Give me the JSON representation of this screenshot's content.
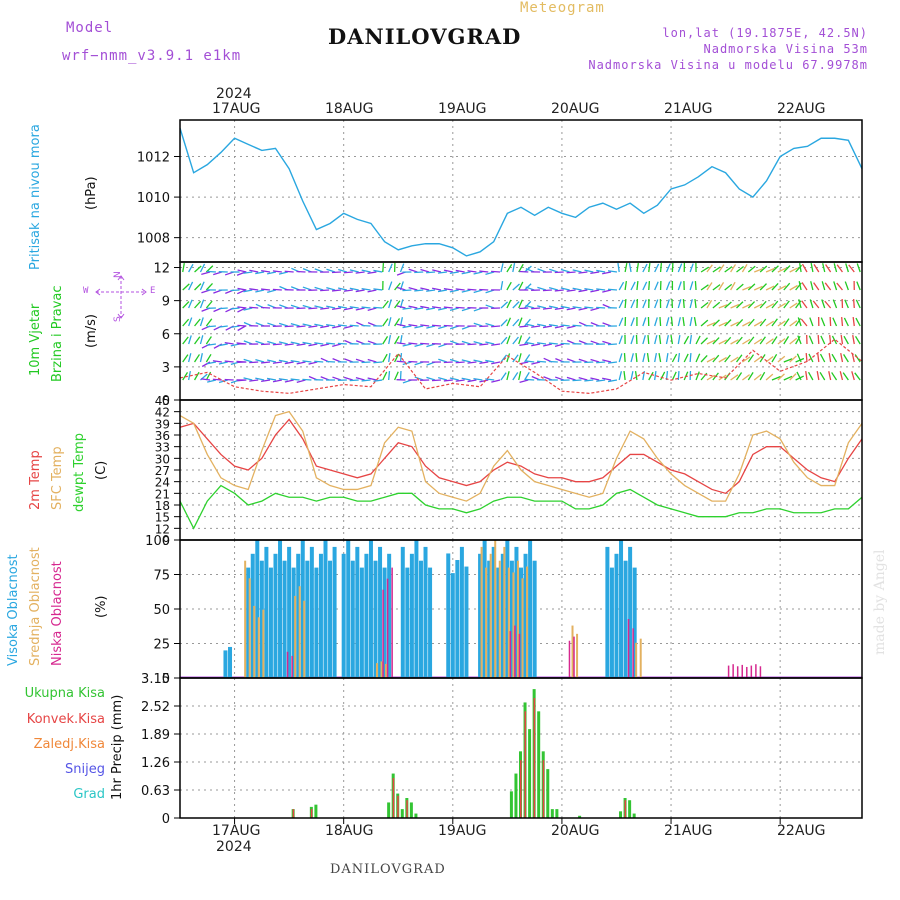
{
  "header": {
    "model_label": "Model",
    "model_name": "wrf−nmm_v3.9.1  e1km",
    "title": "DANILOVGRAD",
    "meteogram_label": "Meteogram",
    "coords": "lon,lat (19.1875E, 42.5N)",
    "elevation": "Nadmorska Visina 53m",
    "model_elevation": "Nadmorska Visina u modelu 67.9978m"
  },
  "axis": {
    "year_top": "2024",
    "year_bottom": "2024",
    "dates": [
      "17AUG",
      "18AUG",
      "19AUG",
      "20AUG",
      "21AUG",
      "22AUG"
    ]
  },
  "footer": {
    "station": "DANILOVGRAD",
    "credit": "made by Angel"
  },
  "colors": {
    "pressure": "#2aa7e0",
    "wind_speed": "#e64545",
    "t2m": "#e64545",
    "sfc": "#e3b160",
    "dewp": "#2ed12e",
    "cloud_high": "#2aa7e0",
    "cloud_mid": "#e3b160",
    "cloud_low": "#d6288f",
    "precip_total": "#33c433",
    "precip_conv": "#e64545",
    "precip_strat": "#f0883a",
    "snow": "#5555e6",
    "grad": "#2bc6c6",
    "wind_label": "#22c922",
    "compass": "#b352e0"
  },
  "panels": {
    "pressure": {
      "label": "Pritisak na nivou mora",
      "unit": "(hPa)"
    },
    "wind": {
      "label_1": "10m Vjetar",
      "label_2": "Brzina i Pravac",
      "unit": "(m/s)",
      "compass": {
        "n": "N",
        "s": "S",
        "e": "E",
        "w": "W"
      }
    },
    "temperature": {
      "label_1": "2m Temp",
      "label_2": "SFC Temp",
      "label_3": "dewpt Temp",
      "unit": "(C)"
    },
    "cloud": {
      "label_1": "Visoka Oblacnost",
      "label_2": "Srednja Oblacnost",
      "label_3": "Niska Oblacnost",
      "unit": "(%)"
    },
    "precip": {
      "labels": [
        "Ukupna Kisa",
        "Konvek.Kisa",
        "Zaledj.Kisa",
        "Snijeg",
        "Grad"
      ],
      "unit": "1hr Precip (mm)"
    }
  },
  "chart_data": [
    {
      "type": "line",
      "name": "pressure",
      "x_hours_from_start": [
        0,
        3,
        6,
        9,
        12,
        15,
        18,
        21,
        24,
        27,
        30,
        33,
        36,
        39,
        42,
        45,
        48,
        51,
        54,
        57,
        60,
        63,
        66,
        69,
        72,
        75,
        78,
        81,
        84,
        87,
        90,
        93,
        96,
        99,
        102,
        105,
        108,
        111,
        114,
        117,
        120,
        123,
        126,
        129,
        132,
        135,
        138,
        141,
        144,
        147,
        150
      ],
      "x_start": "2024-08-16 12:00",
      "values": [
        1013.4,
        1011.2,
        1011.6,
        1012.2,
        1012.9,
        1012.6,
        1012.3,
        1012.4,
        1011.4,
        1009.8,
        1008.4,
        1008.7,
        1009.2,
        1008.9,
        1008.7,
        1007.8,
        1007.4,
        1007.6,
        1007.7,
        1007.7,
        1007.5,
        1007.1,
        1007.3,
        1007.8,
        1009.2,
        1009.5,
        1009.1,
        1009.5,
        1009.2,
        1009.0,
        1009.5,
        1009.7,
        1009.4,
        1009.7,
        1009.2,
        1009.6,
        1010.4,
        1010.6,
        1011.0,
        1011.5,
        1011.2,
        1010.4,
        1010.0,
        1010.8,
        1012.0,
        1012.4,
        1012.5,
        1012.9,
        1012.9,
        1012.8,
        1011.4
      ],
      "yticks": [
        1008,
        1010,
        1012
      ],
      "ylim": [
        1006.8,
        1013.8
      ]
    },
    {
      "type": "line",
      "name": "wind_speed",
      "x_hours_from_start": [
        0,
        6,
        12,
        18,
        24,
        30,
        36,
        42,
        48,
        54,
        60,
        66,
        72,
        78,
        84,
        90,
        96,
        102,
        108,
        114,
        120,
        126,
        132,
        138,
        144,
        150
      ],
      "values": [
        2.0,
        2.5,
        1.2,
        0.8,
        0.6,
        1.0,
        1.4,
        1.2,
        4.2,
        1.0,
        1.5,
        1.2,
        4.0,
        2.5,
        0.8,
        0.6,
        1.0,
        2.5,
        1.8,
        2.4,
        2.0,
        4.5,
        2.6,
        3.5,
        5.5,
        3.5
      ],
      "yticks": [
        0,
        3,
        6,
        9,
        12
      ],
      "ylim": [
        0,
        12.5
      ]
    },
    {
      "type": "line",
      "name": "temperature",
      "x_hours_from_start": [
        0,
        3,
        6,
        9,
        12,
        15,
        18,
        21,
        24,
        27,
        30,
        33,
        36,
        39,
        42,
        45,
        48,
        51,
        54,
        57,
        60,
        63,
        66,
        69,
        72,
        75,
        78,
        81,
        84,
        87,
        90,
        93,
        96,
        99,
        102,
        105,
        108,
        111,
        114,
        117,
        120,
        123,
        126,
        129,
        132,
        135,
        138,
        141,
        144,
        147,
        150
      ],
      "series": [
        {
          "name": "2m Temp",
          "values": [
            38,
            39,
            35,
            31,
            28,
            27,
            30,
            36,
            40,
            35,
            28,
            27,
            26,
            25,
            26,
            30,
            34,
            33,
            28,
            25,
            24,
            23,
            24,
            27,
            29,
            28,
            26,
            25,
            25,
            24,
            24,
            25,
            28,
            31,
            31,
            29,
            27,
            26,
            24,
            22,
            21,
            24,
            31,
            33,
            33,
            30,
            27,
            25,
            24,
            30,
            35
          ]
        },
        {
          "name": "SFC Temp",
          "values": [
            41,
            39,
            31,
            25,
            23,
            22,
            32,
            41,
            42,
            37,
            25,
            23,
            22,
            22,
            23,
            34,
            38,
            37,
            24,
            21,
            20,
            19,
            21,
            28,
            32,
            27,
            24,
            23,
            22,
            21,
            20,
            21,
            30,
            37,
            35,
            30,
            26,
            23,
            21,
            19,
            19,
            26,
            36,
            37,
            35,
            29,
            25,
            23,
            23,
            34,
            39
          ]
        },
        {
          "name": "dewpt Temp",
          "values": [
            19,
            12,
            19,
            23,
            21,
            18,
            19,
            21,
            20,
            20,
            19,
            20,
            20,
            19,
            19,
            20,
            21,
            21,
            18,
            17,
            17,
            16,
            17,
            19,
            20,
            20,
            19,
            19,
            19,
            17,
            17,
            18,
            21,
            22,
            20,
            18,
            17,
            16,
            15,
            15,
            15,
            16,
            16,
            17,
            17,
            16,
            16,
            16,
            17,
            17,
            20
          ]
        }
      ],
      "yticks": [
        9,
        12,
        15,
        18,
        21,
        24,
        27,
        30,
        33,
        36,
        39,
        42,
        45
      ],
      "ylim": [
        9,
        45
      ]
    },
    {
      "type": "bar",
      "name": "cloud_cover",
      "series": [
        {
          "name": "Visoka Oblacnost",
          "segments": [
            [
              10,
              11,
              25
            ],
            [
              15,
              29,
              100
            ],
            [
              30,
              34,
              100
            ],
            [
              36,
              46,
              100
            ],
            [
              49,
              55,
              100
            ],
            [
              59,
              63,
              95
            ],
            [
              66,
              78,
              100
            ],
            [
              94,
              100,
              100
            ]
          ]
        },
        {
          "name": "Srednja Oblacnost",
          "segments": [
            [
              14,
              15,
              85
            ],
            [
              16,
              18,
              55
            ],
            [
              25,
              27,
              70
            ],
            [
              43,
              45,
              12
            ],
            [
              66,
              72,
              100
            ],
            [
              73,
              76,
              85
            ],
            [
              86,
              87,
              40
            ],
            [
              100,
              101,
              30
            ]
          ]
        },
        {
          "name": "Niska Oblacnost",
          "segments": [
            [
              23,
              24,
              20
            ],
            [
              44,
              46,
              80
            ],
            [
              72,
              74,
              40
            ],
            [
              85,
              86,
              30
            ],
            [
              98,
              99,
              45
            ],
            [
              120,
              127,
              10
            ]
          ]
        }
      ],
      "yticks": [
        0,
        25,
        50,
        75,
        100
      ],
      "ylim": [
        0,
        100
      ]
    },
    {
      "type": "bar",
      "name": "precipitation",
      "series": [
        {
          "name": "Ukupna Kisa",
          "bars": [
            [
              25,
              0.2
            ],
            [
              29,
              0.25
            ],
            [
              30,
              0.3
            ],
            [
              46,
              0.35
            ],
            [
              47,
              1.0
            ],
            [
              48,
              0.55
            ],
            [
              49,
              0.2
            ],
            [
              50,
              0.45
            ],
            [
              51,
              0.35
            ],
            [
              52,
              0.1
            ],
            [
              73,
              0.6
            ],
            [
              74,
              1.0
            ],
            [
              75,
              1.5
            ],
            [
              76,
              2.6
            ],
            [
              77,
              2.0
            ],
            [
              78,
              2.9
            ],
            [
              79,
              2.4
            ],
            [
              80,
              1.5
            ],
            [
              81,
              1.1
            ],
            [
              82,
              0.2
            ],
            [
              83,
              0.2
            ],
            [
              88,
              0.05
            ],
            [
              97,
              0.15
            ],
            [
              98,
              0.45
            ],
            [
              99,
              0.4
            ],
            [
              100,
              0.1
            ]
          ]
        },
        {
          "name": "Konvek.Kisa",
          "bars": [
            [
              25,
              0.2
            ],
            [
              29,
              0.2
            ],
            [
              47,
              0.9
            ],
            [
              48,
              0.5
            ],
            [
              50,
              0.4
            ],
            [
              75,
              1.3
            ],
            [
              76,
              2.4
            ],
            [
              78,
              2.7
            ],
            [
              80,
              1.3
            ],
            [
              98,
              0.4
            ]
          ]
        }
      ],
      "yticks": [
        0,
        0.63,
        1.26,
        1.89,
        2.52,
        3.15
      ],
      "ylim": [
        0,
        3.15
      ]
    }
  ]
}
